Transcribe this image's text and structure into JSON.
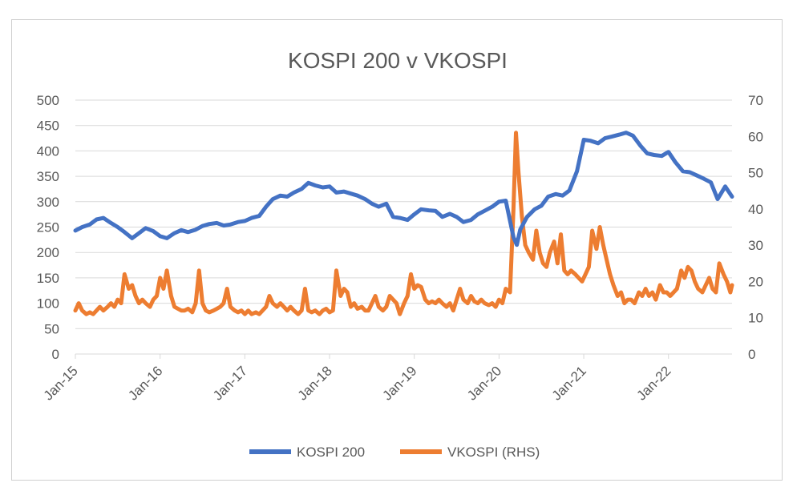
{
  "chart_data": {
    "type": "line",
    "title": "KOSPI 200 v VKOSPI",
    "xlabel": "",
    "ylabel": "",
    "y_left": {
      "ticks": [
        0,
        50,
        100,
        150,
        200,
        250,
        300,
        350,
        400,
        450,
        500
      ],
      "range": [
        0,
        500
      ]
    },
    "y_right": {
      "ticks": [
        0,
        10,
        20,
        30,
        40,
        50,
        60,
        70
      ],
      "range": [
        0,
        70
      ]
    },
    "x_ticks": [
      "Jan-15",
      "Jan-16",
      "Jan-17",
      "Jan-18",
      "Jan-19",
      "Jan-20",
      "Jan-21",
      "Jan-22"
    ],
    "x_range": [
      2015.0,
      2022.75
    ],
    "grid": true,
    "legend_position": "bottom",
    "series": [
      {
        "name": "KOSPI 200",
        "axis": "left",
        "color": "#4472C4",
        "x": [
          2015.0,
          2015.08,
          2015.17,
          2015.25,
          2015.33,
          2015.42,
          2015.5,
          2015.58,
          2015.67,
          2015.75,
          2015.83,
          2015.92,
          2016.0,
          2016.08,
          2016.17,
          2016.25,
          2016.33,
          2016.42,
          2016.5,
          2016.58,
          2016.67,
          2016.75,
          2016.83,
          2016.92,
          2017.0,
          2017.08,
          2017.17,
          2017.25,
          2017.33,
          2017.42,
          2017.5,
          2017.58,
          2017.67,
          2017.75,
          2017.83,
          2017.92,
          2018.0,
          2018.08,
          2018.17,
          2018.25,
          2018.33,
          2018.42,
          2018.5,
          2018.58,
          2018.67,
          2018.75,
          2018.83,
          2018.92,
          2019.0,
          2019.08,
          2019.17,
          2019.25,
          2019.33,
          2019.42,
          2019.5,
          2019.58,
          2019.67,
          2019.75,
          2019.83,
          2019.92,
          2020.0,
          2020.08,
          2020.17,
          2020.21,
          2020.25,
          2020.33,
          2020.42,
          2020.5,
          2020.58,
          2020.67,
          2020.75,
          2020.83,
          2020.92,
          2021.0,
          2021.08,
          2021.17,
          2021.25,
          2021.33,
          2021.42,
          2021.5,
          2021.58,
          2021.67,
          2021.75,
          2021.83,
          2021.92,
          2022.0,
          2022.08,
          2022.17,
          2022.25,
          2022.33,
          2022.42,
          2022.5,
          2022.58,
          2022.67,
          2022.75
        ],
        "values": [
          243,
          250,
          255,
          265,
          268,
          258,
          250,
          240,
          228,
          238,
          248,
          242,
          232,
          228,
          238,
          244,
          240,
          245,
          252,
          256,
          258,
          253,
          255,
          260,
          262,
          268,
          272,
          290,
          305,
          312,
          310,
          318,
          325,
          337,
          332,
          328,
          330,
          318,
          320,
          316,
          312,
          305,
          296,
          290,
          296,
          270,
          268,
          264,
          275,
          285,
          283,
          282,
          270,
          276,
          270,
          260,
          264,
          275,
          282,
          290,
          300,
          302,
          230,
          215,
          245,
          270,
          285,
          292,
          310,
          315,
          312,
          322,
          360,
          422,
          420,
          415,
          425,
          428,
          432,
          436,
          430,
          410,
          395,
          392,
          390,
          398,
          378,
          360,
          358,
          352,
          345,
          338,
          305,
          330,
          310
        ]
      },
      {
        "name": "VKOSPI (RHS)",
        "axis": "right",
        "color": "#ED7D31",
        "x": [
          2015.0,
          2015.04,
          2015.08,
          2015.13,
          2015.17,
          2015.21,
          2015.25,
          2015.29,
          2015.33,
          2015.38,
          2015.42,
          2015.46,
          2015.5,
          2015.54,
          2015.58,
          2015.63,
          2015.67,
          2015.71,
          2015.75,
          2015.79,
          2015.83,
          2015.88,
          2015.92,
          2015.96,
          2016.0,
          2016.04,
          2016.08,
          2016.13,
          2016.17,
          2016.21,
          2016.25,
          2016.29,
          2016.33,
          2016.38,
          2016.42,
          2016.46,
          2016.5,
          2016.54,
          2016.58,
          2016.63,
          2016.67,
          2016.71,
          2016.75,
          2016.79,
          2016.83,
          2016.88,
          2016.92,
          2016.96,
          2017.0,
          2017.04,
          2017.08,
          2017.13,
          2017.17,
          2017.21,
          2017.25,
          2017.29,
          2017.33,
          2017.38,
          2017.42,
          2017.46,
          2017.5,
          2017.54,
          2017.58,
          2017.63,
          2017.67,
          2017.71,
          2017.75,
          2017.79,
          2017.83,
          2017.88,
          2017.92,
          2017.96,
          2018.0,
          2018.04,
          2018.08,
          2018.13,
          2018.17,
          2018.21,
          2018.25,
          2018.29,
          2018.33,
          2018.38,
          2018.42,
          2018.46,
          2018.5,
          2018.54,
          2018.58,
          2018.63,
          2018.67,
          2018.71,
          2018.75,
          2018.79,
          2018.83,
          2018.88,
          2018.92,
          2018.96,
          2019.0,
          2019.04,
          2019.08,
          2019.13,
          2019.17,
          2019.21,
          2019.25,
          2019.29,
          2019.33,
          2019.38,
          2019.42,
          2019.46,
          2019.5,
          2019.54,
          2019.58,
          2019.63,
          2019.67,
          2019.71,
          2019.75,
          2019.79,
          2019.83,
          2019.88,
          2019.92,
          2019.96,
          2020.0,
          2020.04,
          2020.08,
          2020.13,
          2020.17,
          2020.2,
          2020.23,
          2020.27,
          2020.31,
          2020.35,
          2020.4,
          2020.44,
          2020.48,
          2020.52,
          2020.56,
          2020.6,
          2020.65,
          2020.69,
          2020.73,
          2020.77,
          2020.81,
          2020.85,
          2020.9,
          2020.94,
          2020.98,
          2021.02,
          2021.06,
          2021.1,
          2021.15,
          2021.19,
          2021.23,
          2021.27,
          2021.31,
          2021.35,
          2021.4,
          2021.44,
          2021.48,
          2021.52,
          2021.56,
          2021.6,
          2021.65,
          2021.69,
          2021.73,
          2021.77,
          2021.81,
          2021.85,
          2021.9,
          2021.94,
          2021.98,
          2022.02,
          2022.06,
          2022.1,
          2022.15,
          2022.19,
          2022.23,
          2022.27,
          2022.31,
          2022.35,
          2022.4,
          2022.44,
          2022.48,
          2022.52,
          2022.56,
          2022.6,
          2022.65,
          2022.69,
          2022.73,
          2022.75
        ],
        "values": [
          12,
          14,
          12,
          11,
          11.5,
          11,
          12,
          13,
          12,
          13,
          14,
          13,
          15,
          14,
          22,
          18,
          19,
          16,
          14,
          15,
          14,
          13,
          15,
          16,
          21,
          18,
          23,
          16,
          13,
          12.5,
          12,
          12,
          12.5,
          11.5,
          14,
          23,
          14,
          12,
          11.5,
          12,
          12.5,
          13,
          14,
          18,
          13,
          12,
          11.5,
          12,
          11,
          12,
          11,
          11.5,
          11,
          12,
          13,
          16,
          14,
          13,
          14,
          13,
          12,
          13,
          12,
          11,
          12,
          18,
          12,
          11.5,
          12,
          11,
          12,
          12.5,
          11.5,
          12,
          23,
          16,
          18,
          17,
          13,
          14,
          12.5,
          13,
          12,
          12,
          14,
          16,
          13,
          12,
          13,
          16,
          15,
          14,
          11,
          14,
          16,
          22,
          18,
          19,
          18.5,
          15,
          14,
          14.5,
          14,
          15,
          14,
          13,
          14,
          12,
          15,
          18,
          15,
          14,
          16,
          14.5,
          14,
          15,
          14,
          13.5,
          14,
          13,
          15,
          14,
          18,
          17,
          40,
          61,
          50,
          38,
          30,
          28,
          26,
          34,
          28,
          25,
          24,
          28,
          31,
          25,
          33,
          23,
          22,
          23,
          22,
          21,
          20,
          22,
          24,
          34,
          29,
          35,
          30,
          26,
          22,
          19,
          16,
          17,
          14,
          15,
          15,
          14,
          17,
          16,
          18,
          16,
          17,
          15,
          19,
          17,
          17,
          16,
          17,
          18,
          23,
          21,
          24,
          23,
          20,
          18,
          17,
          19,
          21,
          18,
          17,
          25,
          22,
          20,
          17,
          19
        ]
      }
    ]
  }
}
